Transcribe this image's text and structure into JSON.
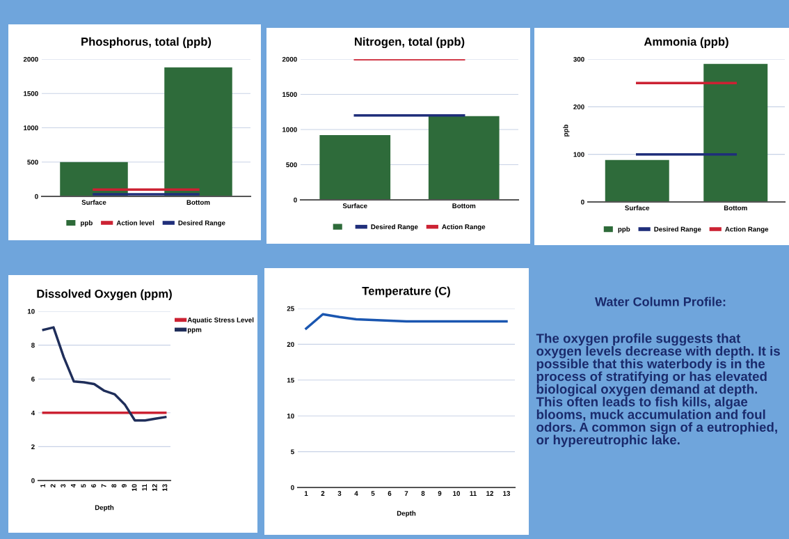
{
  "chart_data": [
    {
      "type": "bar",
      "title": "Phosphorus, total (ppb)",
      "categories": [
        "Surface",
        "Bottom"
      ],
      "series": [
        {
          "name": "ppb",
          "color": "#2e6b3a",
          "values": [
            500,
            1880
          ]
        },
        {
          "name": "Action level",
          "type": "line",
          "color": "#cc2233",
          "values": [
            100,
            100
          ]
        },
        {
          "name": "Desired Range",
          "type": "line",
          "color": "#1f2e7a",
          "values": [
            30,
            30
          ]
        }
      ],
      "ylim": [
        0,
        2000
      ],
      "yticks": [
        0,
        500,
        1000,
        1500,
        2000
      ],
      "grid": "y",
      "legend": "bottom"
    },
    {
      "type": "bar",
      "title": "Nitrogen, total (ppb)",
      "categories": [
        "Surface",
        "Bottom"
      ],
      "series": [
        {
          "color": "#2e6b3a",
          "values": [
            920,
            1190
          ]
        },
        {
          "name": "Desired Range",
          "type": "line",
          "color": "#1f2e7a",
          "values": [
            1200,
            1200
          ]
        },
        {
          "name": "Action Range",
          "type": "line",
          "color": "#cc2233",
          "values": [
            2000,
            2000
          ]
        }
      ],
      "ylim": [
        0,
        2000
      ],
      "yticks": [
        0,
        500,
        1000,
        1500,
        2000
      ],
      "grid": "y",
      "legend": "bottom"
    },
    {
      "type": "bar",
      "title": "Ammonia (ppb)",
      "ylabel": "ppb",
      "categories": [
        "Surface",
        "Bottom"
      ],
      "series": [
        {
          "name": "ppb",
          "color": "#2e6b3a",
          "values": [
            88,
            290
          ]
        },
        {
          "name": "Desired Range",
          "type": "line",
          "color": "#1f2e7a",
          "values": [
            100,
            100
          ]
        },
        {
          "name": "Action Range",
          "type": "line",
          "color": "#cc2233",
          "values": [
            250,
            250
          ]
        }
      ],
      "ylim": [
        0,
        300
      ],
      "yticks": [
        0,
        100,
        200,
        300
      ],
      "grid": "y",
      "legend": "bottom"
    },
    {
      "type": "line",
      "title": "Dissolved Oxygen (ppm)",
      "xlabel": "Depth",
      "categories": [
        "1",
        "2",
        "3",
        "4",
        "5",
        "6",
        "7",
        "8",
        "9",
        "10",
        "11",
        "12",
        "13"
      ],
      "series": [
        {
          "name": "Aquatic Stress Level",
          "color": "#cc2233",
          "values": [
            4,
            4,
            4,
            4,
            4,
            4,
            4,
            4,
            4,
            4,
            4,
            4,
            4
          ]
        },
        {
          "name": "ppm",
          "color": "#1f2e5a",
          "values": [
            8.9,
            9.05,
            7.3,
            5.85,
            5.8,
            5.7,
            5.3,
            5.1,
            4.5,
            3.55,
            3.55,
            3.65,
            3.75
          ]
        }
      ],
      "ylim": [
        0,
        10
      ],
      "yticks": [
        0,
        2,
        4,
        6,
        8,
        10
      ],
      "grid": "y",
      "legend": "right"
    },
    {
      "type": "line",
      "title": "Temperature (C)",
      "xlabel": "Depth",
      "categories": [
        "1",
        "2",
        "3",
        "4",
        "5",
        "6",
        "7",
        "8",
        "9",
        "10",
        "11",
        "12",
        "13"
      ],
      "series": [
        {
          "color": "#1a56b0",
          "values": [
            22.2,
            24.2,
            23.8,
            23.5,
            23.4,
            23.3,
            23.2,
            23.2,
            23.2,
            23.2,
            23.2,
            23.2,
            23.2
          ]
        }
      ],
      "ylim": [
        0,
        25
      ],
      "yticks": [
        0,
        5,
        10,
        15,
        20,
        25
      ],
      "grid": "y"
    },
    {
      "type": "other",
      "title": "Water Column Profile:",
      "annotations": [
        "The oxygen profile suggests that oxygen levels decrease with depth. It is possible that this waterbody is in the process of stratifying or has elevated biological oxygen demand at depth. This often leads to fish kills, algae blooms, muck accumulation and foul odors. A common sign of a eutrophied, or hypereutrophic lake."
      ]
    }
  ]
}
